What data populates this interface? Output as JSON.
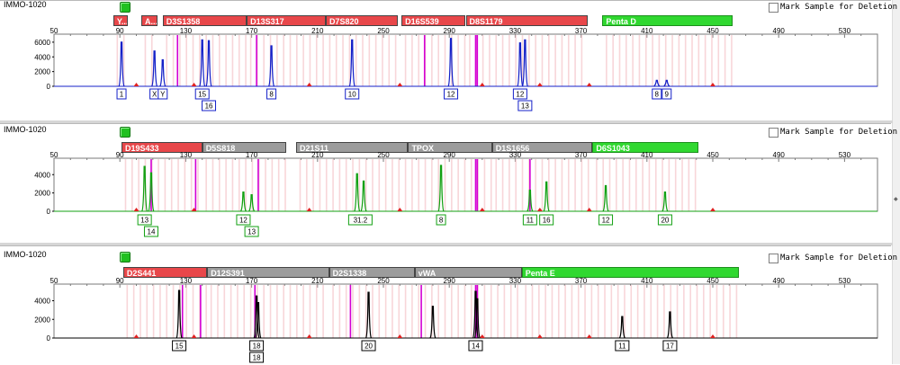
{
  "mark_label": "Mark Sample for Deletion",
  "axis_ticks": [
    "50",
    "90",
    "130",
    "170",
    "210",
    "250",
    "290",
    "330",
    "370",
    "410",
    "450",
    "490",
    "530"
  ],
  "axis_values": [
    50,
    90,
    130,
    170,
    210,
    250,
    290,
    330,
    370,
    410,
    450,
    490,
    530
  ],
  "x_range": [
    50,
    550
  ],
  "colors": {
    "blue": "#1420c8",
    "green": "#12a012",
    "black": "#000000",
    "magenta": "#d400d4",
    "red": "#e8474a",
    "gray": "#9c9c9c",
    "lime": "#30d830"
  },
  "panels": [
    {
      "sample": "IMMO-1020",
      "y_ticks": [
        "6000",
        "4000",
        "2000",
        "0"
      ],
      "y_values": [
        6000,
        4000,
        2000,
        0
      ],
      "y_max": 6600,
      "trace_color": "#1420c8",
      "loci": [
        {
          "name": "Y...",
          "start": 86,
          "end": 95,
          "color": "red"
        },
        {
          "name": "A...",
          "start": 103,
          "end": 113,
          "color": "red"
        },
        {
          "name": "D3S1358",
          "start": 116,
          "end": 167,
          "color": "red"
        },
        {
          "name": "D13S317",
          "start": 167,
          "end": 215,
          "color": "red"
        },
        {
          "name": "D7S820",
          "start": 215,
          "end": 259,
          "color": "red"
        },
        {
          "name": "D16S539",
          "start": 261,
          "end": 300,
          "color": "red"
        },
        {
          "name": "D8S1179",
          "start": 300,
          "end": 374,
          "color": "red"
        },
        {
          "name": "Penta D",
          "start": 383,
          "end": 462,
          "color": "green"
        }
      ],
      "magenta_lines": [
        125,
        173,
        275,
        306,
        307
      ],
      "peaks": [
        {
          "x": 91,
          "h": 6000
        },
        {
          "x": 111,
          "h": 4800
        },
        {
          "x": 116,
          "h": 3600
        },
        {
          "x": 140,
          "h": 6300
        },
        {
          "x": 144,
          "h": 6200
        },
        {
          "x": 182,
          "h": 5500
        },
        {
          "x": 231,
          "h": 6300
        },
        {
          "x": 291,
          "h": 6500
        },
        {
          "x": 333,
          "h": 5900
        },
        {
          "x": 336,
          "h": 6300
        },
        {
          "x": 416,
          "h": 800
        },
        {
          "x": 422,
          "h": 800
        }
      ],
      "alleles": [
        {
          "label": "1",
          "x": 91,
          "row": 0
        },
        {
          "label": "X",
          "x": 111,
          "row": 0
        },
        {
          "label": "Y",
          "x": 116,
          "row": 0
        },
        {
          "label": "15",
          "x": 140,
          "row": 0
        },
        {
          "label": "16",
          "x": 144,
          "row": 1
        },
        {
          "label": "8",
          "x": 182,
          "row": 0
        },
        {
          "label": "10",
          "x": 231,
          "row": 0
        },
        {
          "label": "12",
          "x": 291,
          "row": 0
        },
        {
          "label": "12",
          "x": 333,
          "row": 0
        },
        {
          "label": "13",
          "x": 336,
          "row": 1
        },
        {
          "label": "8",
          "x": 416,
          "row": 0
        },
        {
          "label": "9",
          "x": 422,
          "row": 0
        }
      ]
    },
    {
      "sample": "IMMO-1020",
      "y_ticks": [
        "4000",
        "2000",
        "0"
      ],
      "y_values": [
        4000,
        2000,
        0
      ],
      "y_max": 5400,
      "trace_color": "#12a012",
      "loci": [
        {
          "name": "D19S433",
          "start": 91,
          "end": 140,
          "color": "red"
        },
        {
          "name": "D5S818",
          "start": 140,
          "end": 191,
          "color": "gray"
        },
        {
          "name": "D21S11",
          "start": 197,
          "end": 265,
          "color": "gray"
        },
        {
          "name": "TPOX",
          "start": 265,
          "end": 316,
          "color": "gray"
        },
        {
          "name": "D1S1656",
          "start": 316,
          "end": 377,
          "color": "gray"
        },
        {
          "name": "D6S1043",
          "start": 377,
          "end": 441,
          "color": "green"
        }
      ],
      "magenta_lines": [
        109,
        136,
        174,
        306,
        307,
        339
      ],
      "peaks": [
        {
          "x": 105,
          "h": 4900
        },
        {
          "x": 109,
          "h": 4200
        },
        {
          "x": 165,
          "h": 2100
        },
        {
          "x": 170,
          "h": 1800
        },
        {
          "x": 234,
          "h": 4100
        },
        {
          "x": 238,
          "h": 3300
        },
        {
          "x": 285,
          "h": 5000
        },
        {
          "x": 339,
          "h": 2300
        },
        {
          "x": 349,
          "h": 3200
        },
        {
          "x": 385,
          "h": 2800
        },
        {
          "x": 421,
          "h": 2100
        }
      ],
      "alleles": [
        {
          "label": "13",
          "x": 105,
          "row": 0
        },
        {
          "label": "14",
          "x": 109,
          "row": 1
        },
        {
          "label": "12",
          "x": 165,
          "row": 0
        },
        {
          "label": "13",
          "x": 170,
          "row": 1
        },
        {
          "label": "31.2",
          "x": 236,
          "row": 0
        },
        {
          "label": "8",
          "x": 285,
          "row": 0
        },
        {
          "label": "11",
          "x": 339,
          "row": 0
        },
        {
          "label": "16",
          "x": 349,
          "row": 0
        },
        {
          "label": "12",
          "x": 385,
          "row": 0
        },
        {
          "label": "20",
          "x": 421,
          "row": 0
        }
      ]
    },
    {
      "sample": "IMMO-1020",
      "y_ticks": [
        "4000",
        "2000",
        "0"
      ],
      "y_values": [
        4000,
        2000,
        0
      ],
      "y_max": 5400,
      "trace_color": "#000000",
      "loci": [
        {
          "name": "D2S441",
          "start": 92,
          "end": 143,
          "color": "red"
        },
        {
          "name": "D12S391",
          "start": 143,
          "end": 217,
          "color": "gray"
        },
        {
          "name": "D2S1338",
          "start": 217,
          "end": 269,
          "color": "gray"
        },
        {
          "name": "vWA",
          "start": 269,
          "end": 334,
          "color": "gray"
        },
        {
          "name": "Penta E",
          "start": 334,
          "end": 466,
          "color": "green"
        }
      ],
      "magenta_lines": [
        128,
        139,
        172,
        230,
        273,
        306,
        307
      ],
      "peaks": [
        {
          "x": 126,
          "h": 5100
        },
        {
          "x": 173,
          "h": 4500
        },
        {
          "x": 174,
          "h": 3800
        },
        {
          "x": 241,
          "h": 4900
        },
        {
          "x": 280,
          "h": 3400
        },
        {
          "x": 306,
          "h": 5000
        },
        {
          "x": 307,
          "h": 4200
        },
        {
          "x": 395,
          "h": 2300
        },
        {
          "x": 424,
          "h": 2800
        }
      ],
      "alleles": [
        {
          "label": "15",
          "x": 126,
          "row": 0
        },
        {
          "label": "18",
          "x": 173,
          "row": 0
        },
        {
          "label": "18",
          "x": 173,
          "row": 1
        },
        {
          "label": "20",
          "x": 241,
          "row": 0
        },
        {
          "label": "14",
          "x": 306,
          "row": 0
        },
        {
          "label": "11",
          "x": 395,
          "row": 0
        },
        {
          "label": "17",
          "x": 424,
          "row": 0
        }
      ]
    }
  ]
}
